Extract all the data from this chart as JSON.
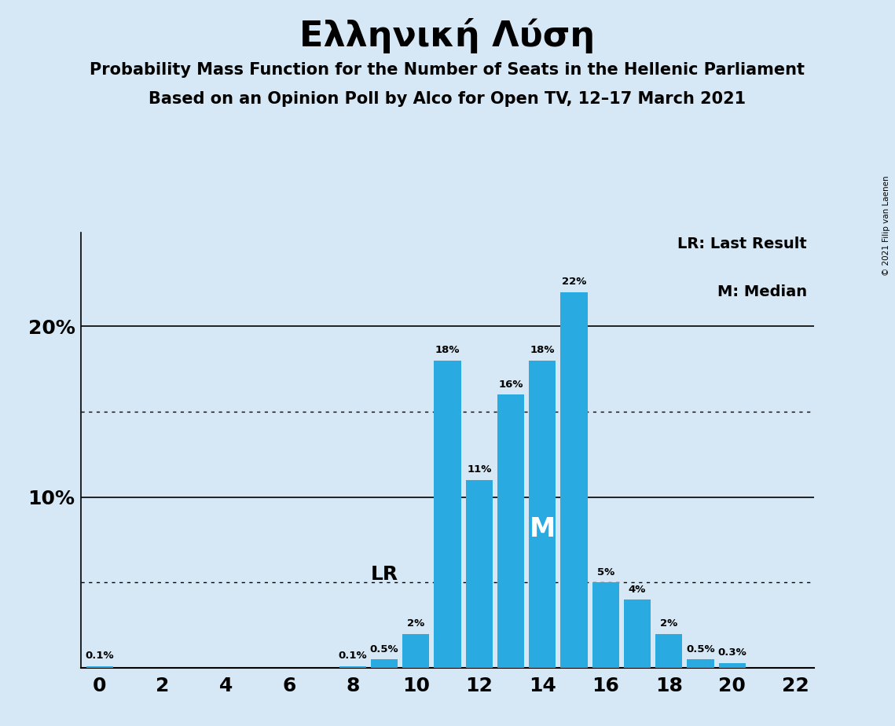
{
  "title": "Ελληνική Λύση",
  "subtitle1": "Probability Mass Function for the Number of Seats in the Hellenic Parliament",
  "subtitle2": "Based on an Opinion Poll by Alco for Open TV, 12–17 March 2021",
  "copyright": "© 2021 Filip van Laenen",
  "seats": [
    0,
    1,
    2,
    3,
    4,
    5,
    6,
    7,
    8,
    9,
    10,
    11,
    12,
    13,
    14,
    15,
    16,
    17,
    18,
    19,
    20,
    21,
    22
  ],
  "probabilities": [
    0.1,
    0.0,
    0.0,
    0.0,
    0.0,
    0.0,
    0.0,
    0.0,
    0.1,
    0.5,
    2.0,
    18.0,
    11.0,
    16.0,
    18.0,
    22.0,
    5.0,
    4.0,
    2.0,
    0.5,
    0.3,
    0.0,
    0.0
  ],
  "bar_color": "#29ABE2",
  "background_color": "#D6E8F5",
  "LR_seat": 10,
  "median_seat": 14,
  "legend_LR": "LR: Last Result",
  "legend_M": "M: Median",
  "dotted_lines": [
    5.0,
    15.0
  ],
  "solid_lines": [
    10.0,
    20.0
  ],
  "xlim": [
    -0.6,
    22.6
  ],
  "ylim": [
    0,
    25.5
  ]
}
